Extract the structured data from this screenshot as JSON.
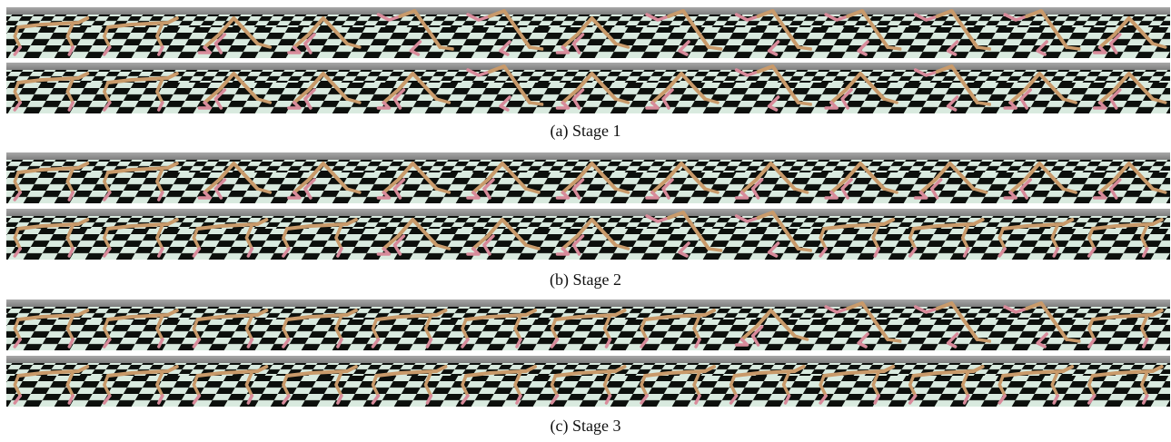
{
  "figure": {
    "stages": [
      {
        "caption": "(a) Stage 1",
        "rows": [
          {
            "poses": [
              "walk",
              "walk",
              "jump",
              "jump",
              "rear",
              "rear",
              "jump",
              "rear",
              "rear",
              "rear",
              "rear",
              "rear",
              "jump"
            ]
          },
          {
            "poses": [
              "walk",
              "walk",
              "jump",
              "jump",
              "jump",
              "rear",
              "jump",
              "jump",
              "rear",
              "jump",
              "rear",
              "jump",
              "jump"
            ]
          }
        ]
      },
      {
        "caption": "(b) Stage 2",
        "rows": [
          {
            "poses": [
              "walk",
              "walk",
              "jump",
              "jump",
              "jump",
              "jump",
              "jump",
              "jump",
              "jump",
              "jump",
              "jump",
              "jump",
              "jump"
            ]
          },
          {
            "poses": [
              "walk",
              "walk",
              "walk",
              "walk",
              "jump",
              "jump",
              "jump",
              "rear",
              "rear",
              "walk",
              "walk",
              "walk",
              "walk"
            ]
          }
        ]
      },
      {
        "caption": "(c) Stage 3",
        "rows": [
          {
            "poses": [
              "walk",
              "walk",
              "walk",
              "walk",
              "walk",
              "walk",
              "walk",
              "walk",
              "jump",
              "rear",
              "rear",
              "rear",
              "walk"
            ]
          },
          {
            "poses": [
              "walk",
              "walk",
              "walk",
              "walk",
              "walk",
              "walk",
              "walk",
              "walk",
              "walk",
              "walk",
              "walk",
              "walk",
              "walk"
            ]
          }
        ]
      }
    ],
    "colors": {
      "body": "#c99a6a",
      "body_dark": "#8f6a45",
      "leg": "#d88a9a",
      "floor_light": "#d9eadf",
      "floor_dark": "#0c0f0c",
      "sky": "#a8a8a8",
      "horizon": "#7d7d7d"
    }
  }
}
